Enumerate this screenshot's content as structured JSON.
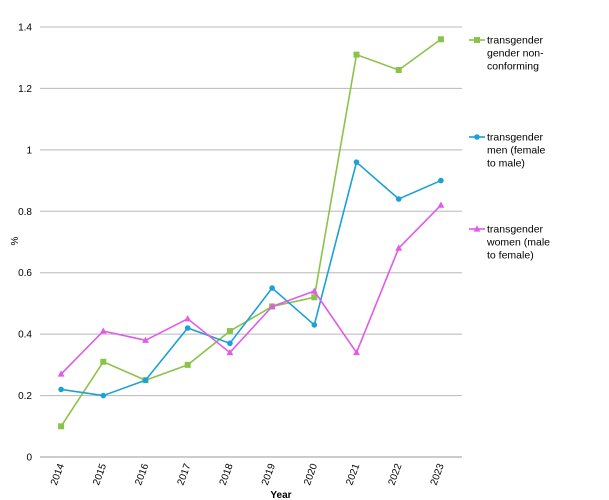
{
  "chart_data": {
    "type": "line",
    "title": "",
    "xlabel": "Year",
    "ylabel": "%",
    "x": [
      "2014",
      "2015",
      "2016",
      "2017",
      "2018",
      "2019",
      "2020",
      "2021",
      "2022",
      "2023"
    ],
    "ylim": [
      0,
      1.4
    ],
    "yticks": [
      "0",
      "0.2",
      "0.4",
      "0.6",
      "0.8",
      "1",
      "1.2",
      "1.4"
    ],
    "grid": true,
    "legend_position": "right",
    "series": [
      {
        "name": "transgender gender non-conforming",
        "legend_lines": [
          "transgender",
          "gender non-",
          "conforming"
        ],
        "color": "#8BC34A",
        "marker": "square",
        "values": [
          0.1,
          0.31,
          0.25,
          0.3,
          0.41,
          0.49,
          0.52,
          1.31,
          1.26,
          1.36
        ]
      },
      {
        "name": "transgender men (female to male)",
        "legend_lines": [
          "transgender",
          "men (female",
          "to male)"
        ],
        "color": "#1BA1D6",
        "marker": "circle",
        "values": [
          0.22,
          0.2,
          0.25,
          0.42,
          0.37,
          0.55,
          0.43,
          0.96,
          0.84,
          0.9
        ]
      },
      {
        "name": "transgender women (male to female)",
        "legend_lines": [
          "transgender",
          "women (male",
          "to female)"
        ],
        "color": "#E15AE8",
        "marker": "triangle",
        "values": [
          0.27,
          0.41,
          0.38,
          0.45,
          0.34,
          0.49,
          0.54,
          0.34,
          0.68,
          0.82
        ]
      }
    ]
  }
}
